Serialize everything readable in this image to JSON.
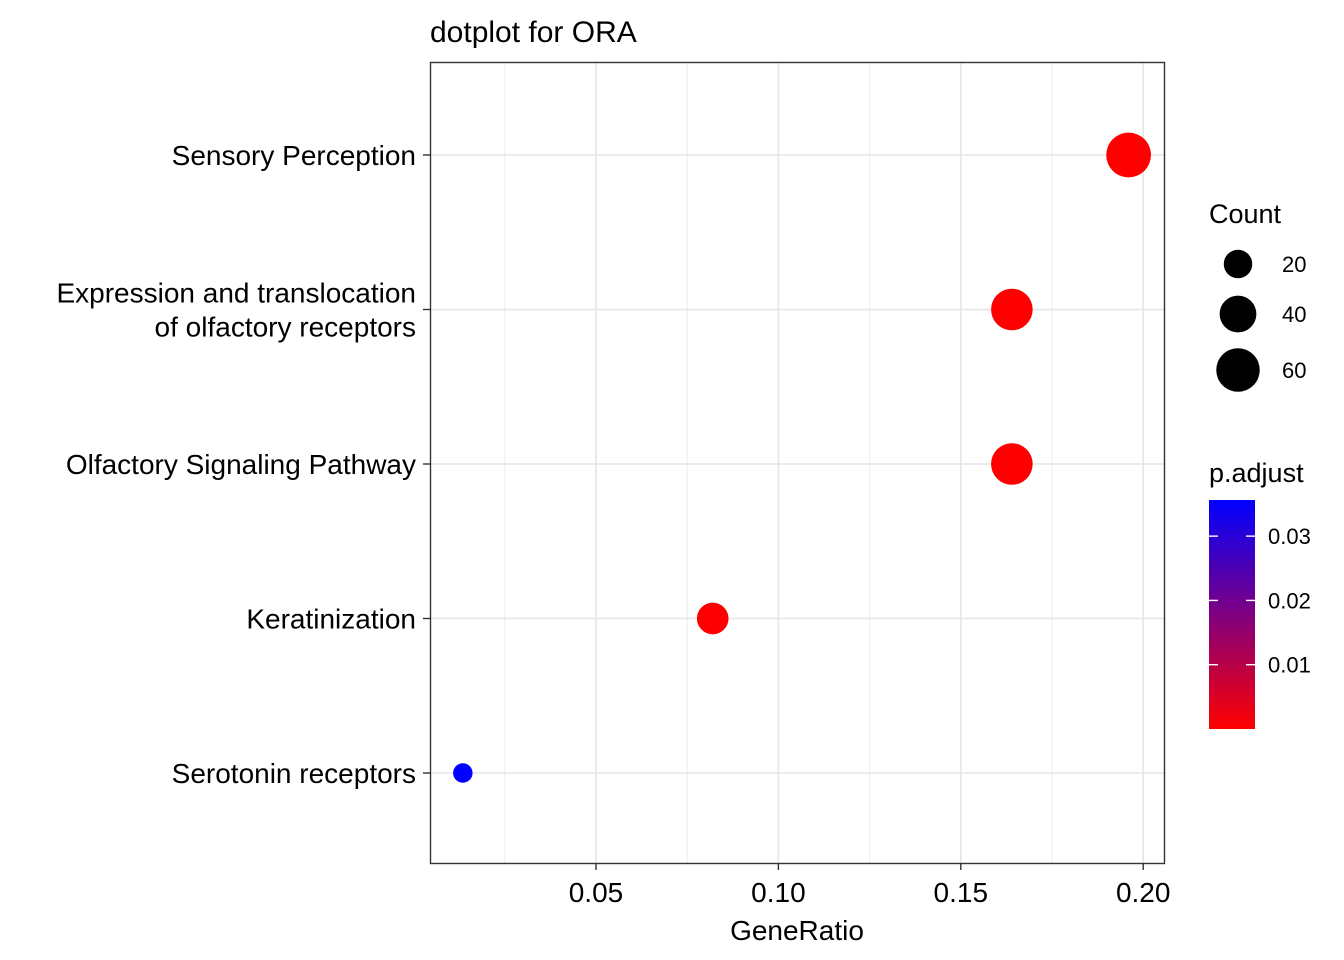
{
  "chart_data": {
    "type": "scatter",
    "title": "dotplot for ORA",
    "xlabel": "GeneRatio",
    "ylabel": "",
    "xlim": [
      0.0045,
      0.2057
    ],
    "xticks": [
      0.05,
      0.1,
      0.15,
      0.2
    ],
    "xtick_labels": [
      "0.05",
      "0.10",
      "0.15",
      "0.20"
    ],
    "grid": true,
    "categories": [
      [
        "Sensory Perception"
      ],
      [
        "Expression and translocation",
        "of olfactory receptors"
      ],
      [
        "Olfactory Signaling Pathway"
      ],
      [
        "Keratinization"
      ],
      [
        "Serotonin receptors"
      ]
    ],
    "points": [
      {
        "category_index": 0,
        "x": 0.196,
        "count": 64,
        "p_adjust": 1e-05
      },
      {
        "category_index": 1,
        "x": 0.164,
        "count": 54,
        "p_adjust": 1e-05
      },
      {
        "category_index": 2,
        "x": 0.164,
        "count": 54,
        "p_adjust": 1e-05
      },
      {
        "category_index": 3,
        "x": 0.082,
        "count": 27,
        "p_adjust": 0.0002
      },
      {
        "category_index": 4,
        "x": 0.0135,
        "count": 4,
        "p_adjust": 0.035
      }
    ],
    "size_legend": {
      "title": "Count",
      "values": [
        20,
        40,
        60
      ],
      "labels": [
        "20",
        "40",
        "60"
      ]
    },
    "color_legend": {
      "title": "p.adjust",
      "low_color": "#ff0000",
      "high_color": "#0000ff",
      "range": [
        0.0,
        0.035
      ],
      "ticks": [
        0.01,
        0.02,
        0.03
      ],
      "tick_labels": [
        "0.01",
        "0.02",
        "0.03"
      ]
    },
    "legend_position": "right"
  }
}
